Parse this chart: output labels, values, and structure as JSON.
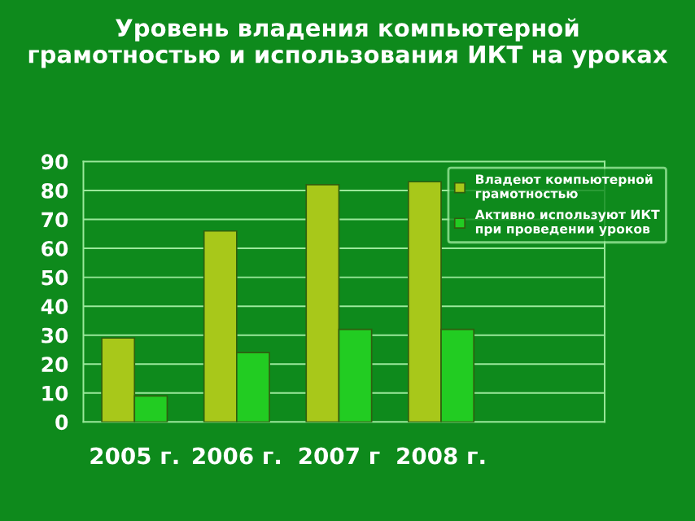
{
  "chart_data": {
    "type": "bar",
    "title": "Уровень владения компьютерной\nграмотностью и использования ИКТ на уроках",
    "categories": [
      "2005 г.",
      "2006 г.",
      "2007 г",
      "2008 г."
    ],
    "series": [
      {
        "name": "Владеют компьютерной\nграмотностью",
        "color": "#a8c81a",
        "values": [
          29,
          66,
          82,
          83
        ]
      },
      {
        "name": "Активно используют ИКТ\nпри проведении уроков",
        "color": "#22cc22",
        "values": [
          9,
          24,
          32,
          32
        ]
      }
    ],
    "ylim": [
      0,
      90
    ],
    "yticks": [
      0,
      10,
      20,
      30,
      40,
      50,
      60,
      70,
      80,
      90
    ],
    "grid": "y",
    "legend": "top right"
  }
}
